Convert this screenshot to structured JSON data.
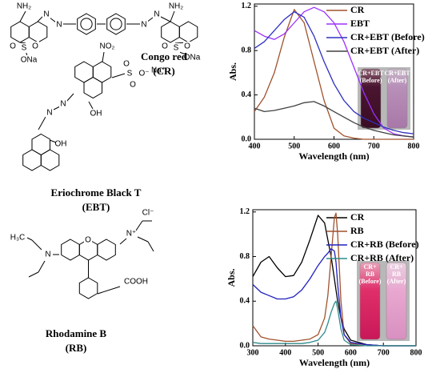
{
  "structures": [
    {
      "name": "Congo red",
      "abbr": "(CR)",
      "atoms": [
        "NH₂",
        "N",
        "N",
        "N",
        "N",
        "NH₂",
        "O",
        "S",
        "O",
        "ONa",
        "O",
        "S",
        "O",
        "ONa"
      ]
    },
    {
      "name": "Eriochrome Black T",
      "abbr": "(EBT)",
      "atoms": [
        "NO₂",
        "O",
        "S",
        "O",
        "O⁻",
        "Na⁺",
        "N",
        "N",
        "OH",
        "OH"
      ]
    },
    {
      "name": "Rhodamine B",
      "abbr": "(RB)",
      "atoms": [
        "Cl⁻",
        "H₃C",
        "N",
        "O",
        "N⁺",
        "COOH"
      ]
    }
  ],
  "chart_data": [
    {
      "type": "line",
      "xlabel": "Wavelength (nm)",
      "ylabel": "Abs.",
      "x": [
        400,
        425,
        450,
        475,
        500,
        525,
        550,
        575,
        600,
        625,
        650,
        675,
        700,
        725,
        750,
        775,
        800
      ],
      "xlim": [
        400,
        800
      ],
      "xticks": [
        400,
        500,
        600,
        700,
        800
      ],
      "ylim": [
        0,
        1.22
      ],
      "yticks": [
        {
          "value": 0,
          "label": "0.0"
        },
        0.4,
        0.8,
        1.2
      ],
      "legend": "upper right",
      "series": [
        {
          "name": "CR",
          "color": "#a0522d",
          "values": [
            0.25,
            0.38,
            0.6,
            0.92,
            1.17,
            1.05,
            0.7,
            0.35,
            0.1,
            0.03,
            0.01,
            0,
            0,
            0,
            0,
            0,
            0
          ]
        },
        {
          "name": "EBT",
          "color": "#9b30ff",
          "values": [
            0.98,
            0.93,
            0.9,
            0.95,
            1.05,
            1.15,
            1.19,
            1.15,
            1.05,
            0.88,
            0.65,
            0.42,
            0.23,
            0.1,
            0.05,
            0.03,
            0.02
          ]
        },
        {
          "name": "CR+EBT (Before)",
          "color": "#3030c0",
          "values": [
            0.82,
            0.88,
            0.98,
            1.08,
            1.15,
            1.1,
            0.93,
            0.7,
            0.5,
            0.35,
            0.25,
            0.19,
            0.15,
            0.11,
            0.08,
            0.06,
            0.05
          ]
        },
        {
          "name": "CR+EBT (After)",
          "color": "#404040",
          "values": [
            0.28,
            0.25,
            0.26,
            0.28,
            0.3,
            0.33,
            0.34,
            0.3,
            0.25,
            0.2,
            0.15,
            0.11,
            0.08,
            0.06,
            0.04,
            0.03,
            0.02
          ]
        }
      ],
      "inset_labels": [
        [
          "CR+EBT",
          "(Before)"
        ],
        [
          "CR+EBT",
          "(After)"
        ]
      ]
    },
    {
      "type": "line",
      "xlabel": "Wavelength (nm)",
      "ylabel": "Abs.",
      "x": [
        300,
        325,
        350,
        375,
        400,
        425,
        450,
        475,
        500,
        520,
        530,
        540,
        550,
        555,
        560,
        570,
        580,
        600,
        650,
        700,
        750,
        800
      ],
      "xlim": [
        300,
        800
      ],
      "xticks": [
        300,
        400,
        500,
        600,
        700,
        800
      ],
      "ylim": [
        0,
        1.22
      ],
      "yticks": [
        {
          "value": 0,
          "label": "0.0"
        },
        0.4,
        0.8,
        1.2
      ],
      "legend": "upper right",
      "series": [
        {
          "name": "CR",
          "color": "#000000",
          "values": [
            0.62,
            0.75,
            0.8,
            0.7,
            0.62,
            0.63,
            0.75,
            0.95,
            1.17,
            1.1,
            0.95,
            0.8,
            0.6,
            0.5,
            0.4,
            0.25,
            0.15,
            0.05,
            0.01,
            0,
            0,
            0
          ]
        },
        {
          "name": "RB",
          "color": "#a0522d",
          "values": [
            0.18,
            0.08,
            0.06,
            0.05,
            0.04,
            0.04,
            0.05,
            0.06,
            0.1,
            0.25,
            0.45,
            0.8,
            1.15,
            1.19,
            1.0,
            0.4,
            0.1,
            0.02,
            0.01,
            0,
            0,
            0
          ]
        },
        {
          "name": "CR+RB (Before)",
          "color": "#2020c0",
          "values": [
            0.55,
            0.48,
            0.45,
            0.42,
            0.42,
            0.44,
            0.5,
            0.6,
            0.72,
            0.8,
            0.83,
            0.87,
            0.85,
            0.75,
            0.55,
            0.25,
            0.1,
            0.03,
            0.01,
            0,
            0,
            0
          ]
        },
        {
          "name": "CR+RB (After)",
          "color": "#2e8b8b",
          "values": [
            0.03,
            0.02,
            0.02,
            0.02,
            0.02,
            0.02,
            0.02,
            0.03,
            0.05,
            0.12,
            0.2,
            0.3,
            0.38,
            0.4,
            0.33,
            0.15,
            0.05,
            0.01,
            0,
            0,
            0,
            0
          ]
        }
      ],
      "inset_labels": [
        [
          "CR+",
          "RB",
          "(Before)"
        ],
        [
          "CR+",
          "RB",
          "(After)"
        ]
      ]
    }
  ]
}
